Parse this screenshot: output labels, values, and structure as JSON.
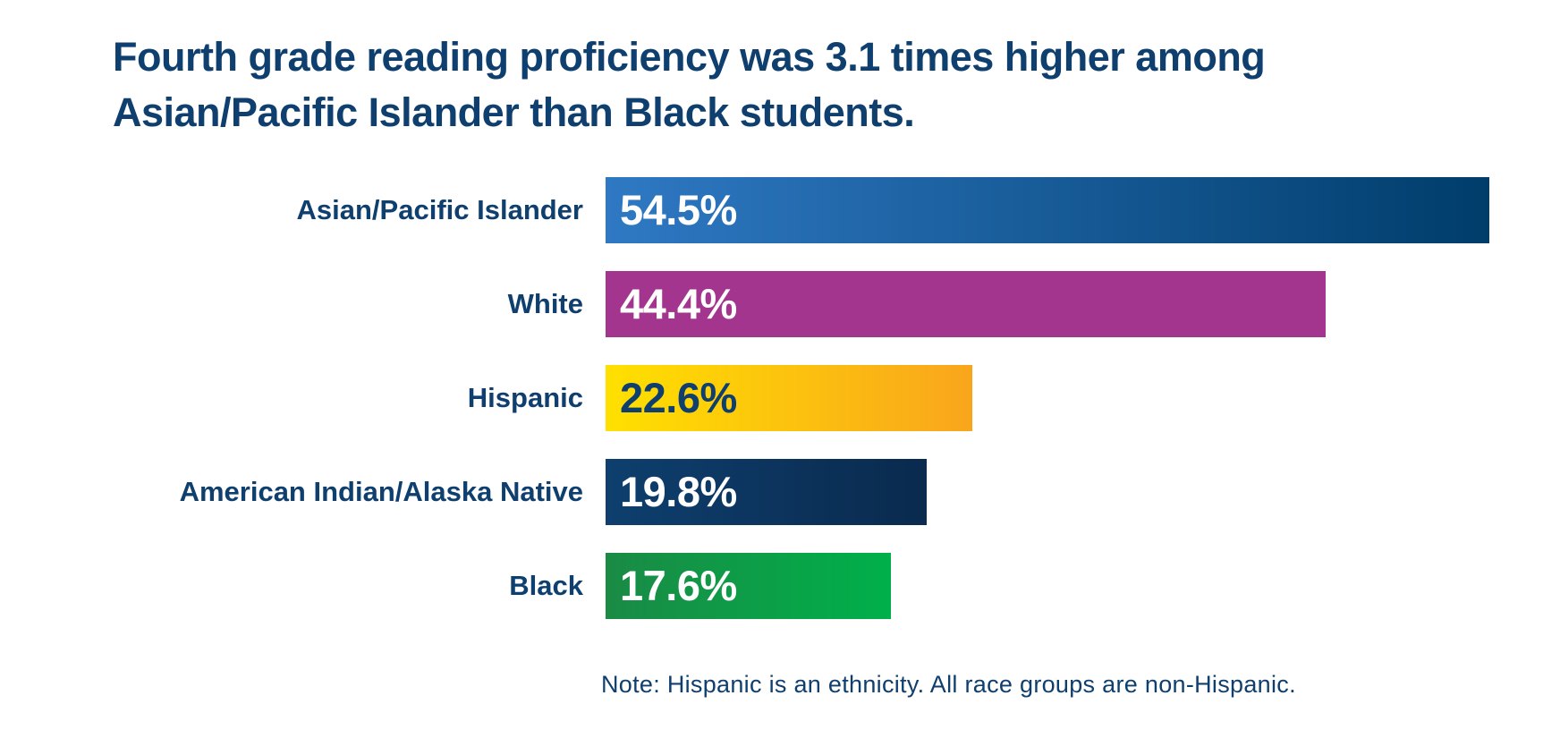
{
  "chart_data": {
    "type": "bar",
    "orientation": "horizontal",
    "title": "Fourth grade reading proficiency was 3.1 times higher among Asian/Pacific Islander than Black students.",
    "categories": [
      "Asian/Pacific Islander",
      "White",
      "Hispanic",
      "American Indian/Alaska Native",
      "Black"
    ],
    "values": [
      54.5,
      44.4,
      22.6,
      19.8,
      17.6
    ],
    "value_labels": [
      "54.5%",
      "44.4%",
      "22.6%",
      "19.8%",
      "17.6%"
    ],
    "bar_gradients": [
      [
        "#2f79c4",
        "#003d6b"
      ],
      [
        "#a3358e",
        "#a3358e"
      ],
      [
        "#ffe000",
        "#f9a51c"
      ],
      [
        "#0e3f6e",
        "#0a2a4e"
      ],
      [
        "#1a8a45",
        "#00b04a"
      ]
    ],
    "value_label_colors": [
      "#ffffff",
      "#ffffff",
      "#0e3f6e",
      "#ffffff",
      "#ffffff"
    ],
    "xlim": [
      0,
      54.5
    ],
    "xlabel": "",
    "ylabel": "",
    "grid": false,
    "legend": "none",
    "note": "Note: Hispanic is an ethnicity. All race groups are non-Hispanic."
  }
}
